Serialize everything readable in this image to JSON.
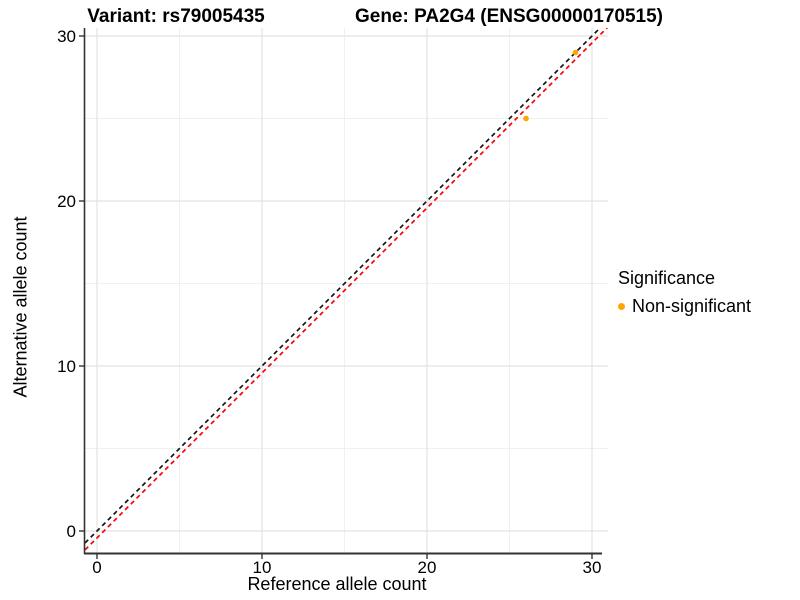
{
  "chart_data": {
    "type": "scatter",
    "titles": {
      "left": "Variant: rs79005435",
      "right": "Gene: PA2G4 (ENSG00000170515)"
    },
    "xlabel": "Reference allele count",
    "ylabel": "Alternative allele count",
    "xlim": [
      -0.727,
      30.97
    ],
    "ylim": [
      -1.333,
      30.485
    ],
    "x_ticks": [
      0,
      10,
      20,
      30
    ],
    "y_ticks": [
      0,
      10,
      20,
      30
    ],
    "x_minor_ticks": [
      5,
      15,
      25
    ],
    "y_minor_ticks": [
      5,
      15,
      25
    ],
    "grid": true,
    "series": [
      {
        "name": "Non-significant",
        "color": "#FFA500",
        "points": [
          [
            26,
            25
          ],
          [
            29,
            29
          ]
        ]
      }
    ],
    "lines": [
      {
        "name": "identity-line",
        "slope": 1,
        "intercept": 0,
        "color": "#141414",
        "style": "dashed"
      },
      {
        "name": "expected-ratio-line",
        "slope": 1,
        "intercept": -0.42,
        "color": "#FF0000",
        "style": "dashed"
      }
    ],
    "legend": {
      "title": "Significance",
      "position": "right",
      "items": [
        {
          "label": "Non-significant",
          "color": "#FFA500"
        }
      ]
    },
    "colors": {
      "background": "#FFFFFF",
      "grid_major": "#E2E2E2",
      "grid_minor": "#F0F0F0",
      "axis_line": "#333333",
      "tick_mark": "#333333",
      "tick_label": "#000000"
    }
  }
}
